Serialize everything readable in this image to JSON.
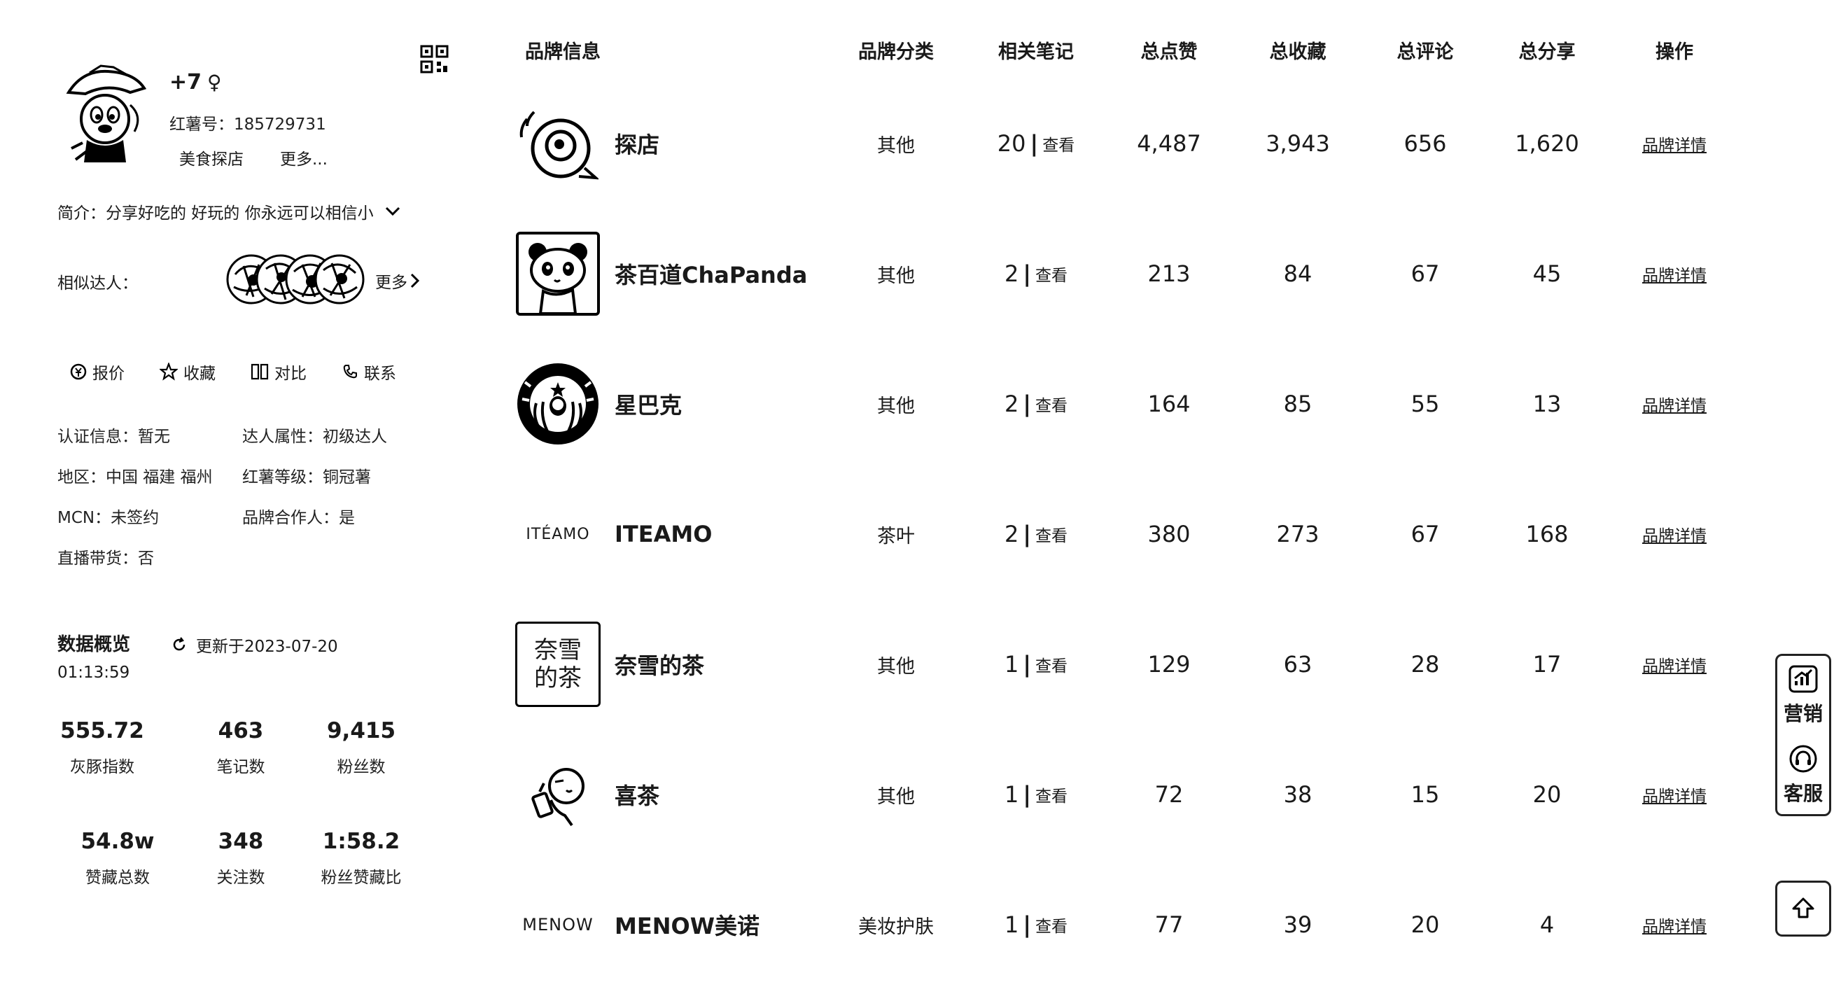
{
  "profile": {
    "name": "+7",
    "gender_symbol": "♀",
    "red_id": "红薯号：185729731",
    "tags": [
      "美食探店",
      "更多..."
    ],
    "intro": "简介：分享好吃的 好玩的 你永远可以相信小",
    "similar_label": "相似达人：",
    "similar_more": "更多",
    "actions": [
      {
        "label": "报价",
        "icon": "price-icon"
      },
      {
        "label": "收藏",
        "icon": "star-icon"
      },
      {
        "label": "对比",
        "icon": "compare-icon"
      },
      {
        "label": "联系",
        "icon": "phone-icon"
      }
    ],
    "info": {
      "cert": "认证信息：暂无",
      "attr": "达人属性：初级达人",
      "region": "地区：中国 福建 福州",
      "level": "红薯等级：铜冠薯",
      "mcn": "MCN：未签约",
      "brand_partner": "品牌合作人：是",
      "live": "直播带货：否"
    }
  },
  "overview": {
    "title": "数据概览",
    "updated": "更新于2023-07-20",
    "updated_time": "01:13:59",
    "stats": [
      {
        "value": "555.72",
        "label": "灰豚指数"
      },
      {
        "value": "463",
        "label": "笔记数"
      },
      {
        "value": "9,415",
        "label": "粉丝数"
      },
      {
        "value": "54.8w",
        "label": "赞藏总数"
      },
      {
        "value": "348",
        "label": "关注数"
      },
      {
        "value": "1:58.2",
        "label": "粉丝赞藏比"
      }
    ]
  },
  "table": {
    "headers": [
      "品牌信息",
      "品牌分类",
      "相关笔记",
      "总点赞",
      "总收藏",
      "总评论",
      "总分享",
      "操作"
    ],
    "view_label": "查看",
    "detail_label": "品牌详情",
    "rows": [
      {
        "brand": "探店",
        "logo": "camera-eye-icon",
        "category": "其他",
        "notes": "20",
        "likes": "4,487",
        "favs": "3,943",
        "comments": "656",
        "shares": "1,620"
      },
      {
        "brand": "茶百道ChaPanda",
        "logo": "panda-icon",
        "category": "其他",
        "notes": "2",
        "likes": "213",
        "favs": "84",
        "comments": "67",
        "shares": "45"
      },
      {
        "brand": "星巴克",
        "logo": "starbucks-icon",
        "category": "其他",
        "notes": "2",
        "likes": "164",
        "favs": "85",
        "comments": "55",
        "shares": "13"
      },
      {
        "brand": "ITEAMO",
        "logo_text": "ITÉAMO",
        "category": "茶叶",
        "notes": "2",
        "likes": "380",
        "favs": "273",
        "comments": "67",
        "shares": "168"
      },
      {
        "brand": "奈雪的茶",
        "logo_text": "奈雪的茶",
        "category": "其他",
        "notes": "1",
        "likes": "129",
        "favs": "63",
        "comments": "28",
        "shares": "17"
      },
      {
        "brand": "喜茶",
        "logo": "heytea-icon",
        "category": "其他",
        "notes": "1",
        "likes": "72",
        "favs": "38",
        "comments": "15",
        "shares": "20"
      },
      {
        "brand": "MENOW美诺",
        "logo_text": "MENOW",
        "category": "美妆护肤",
        "notes": "1",
        "likes": "77",
        "favs": "39",
        "comments": "20",
        "shares": "4"
      }
    ]
  },
  "float": {
    "marketing": "营销",
    "service": "客服"
  }
}
